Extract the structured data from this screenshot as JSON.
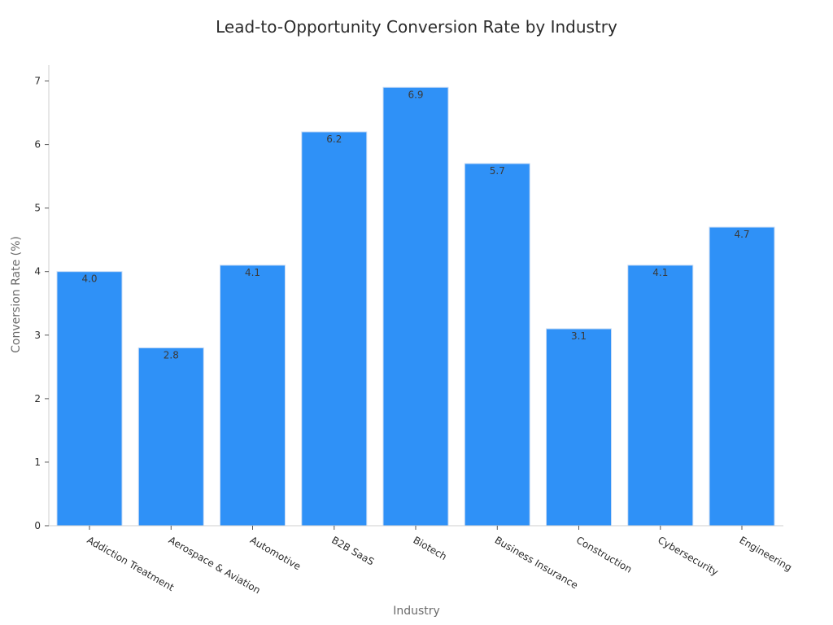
{
  "chart_data": {
    "type": "bar",
    "title": "Lead-to-Opportunity Conversion Rate by Industry",
    "xlabel": "Industry",
    "ylabel": "Conversion Rate (%)",
    "categories": [
      "Addiction Treatment",
      "Aerospace & Aviation",
      "Automotive",
      "B2B SaaS",
      "Biotech",
      "Business Insurance",
      "Construction",
      "Cybersecurity",
      "Engineering"
    ],
    "values": [
      4.0,
      2.8,
      4.1,
      6.2,
      6.9,
      5.7,
      3.1,
      4.1,
      4.7
    ],
    "data_labels": [
      "4.0",
      "2.8",
      "4.1",
      "6.2",
      "6.9",
      "5.7",
      "3.1",
      "4.1",
      "4.7"
    ],
    "ylim": [
      0,
      7.25
    ],
    "yticks": [
      0,
      1,
      2,
      3,
      4,
      5,
      6,
      7
    ],
    "grid": false,
    "legend": "none",
    "bar_color": "#2f91f7"
  }
}
